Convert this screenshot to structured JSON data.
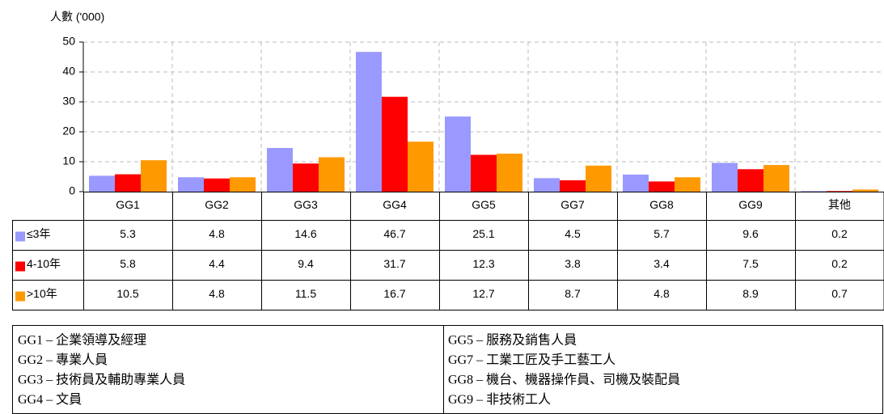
{
  "chart_data": {
    "type": "bar",
    "ylabel": "人數 ('000)",
    "categories": [
      "GG1",
      "GG2",
      "GG3",
      "GG4",
      "GG5",
      "GG7",
      "GG8",
      "GG9",
      "其他"
    ],
    "series": [
      {
        "name": "≤3年",
        "color": "#9999ff",
        "values": [
          5.3,
          4.8,
          14.6,
          46.7,
          25.1,
          4.5,
          5.7,
          9.6,
          0.2
        ]
      },
      {
        "name": "4-10年",
        "color": "#ff0000",
        "values": [
          5.8,
          4.4,
          9.4,
          31.7,
          12.3,
          3.8,
          3.4,
          7.5,
          0.2
        ]
      },
      {
        "name": ">10年",
        "color": "#ff9900",
        "values": [
          10.5,
          4.8,
          11.5,
          16.7,
          12.7,
          8.7,
          4.8,
          8.9,
          0.7
        ]
      }
    ],
    "ylim": [
      0,
      50
    ],
    "yticks": [
      0,
      10,
      20,
      30,
      40,
      50
    ],
    "grid": true,
    "notes": [
      [
        "GG1 – 企業領導及經理",
        "GG2 – 專業人員",
        "GG3 – 技術員及輔助專業人員",
        "GG4 – 文員"
      ],
      [
        "GG5 – 服務及銷售人員",
        "GG7 – 工業工匠及手工藝工人",
        "GG8 – 機台、機器操作員、司機及裝配員",
        "GG9 – 非技術工人"
      ]
    ]
  }
}
